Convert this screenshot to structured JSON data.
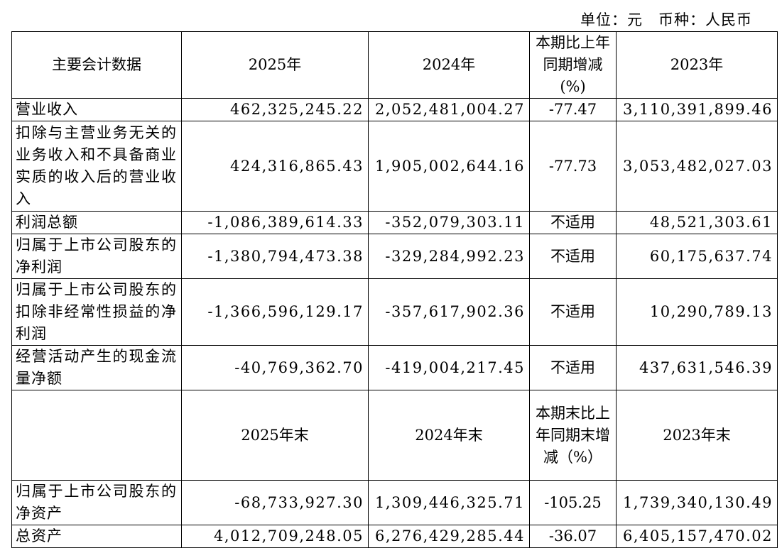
{
  "unit_line": "单位：元　币种：人民币",
  "table": {
    "rows": [
      [
        "主要会计数据",
        "2025年",
        "2024年",
        "本期比上年同期增减(%)",
        "2023年"
      ],
      [
        "营业收入",
        "462,325,245.22",
        "2,052,481,004.27",
        "-77.47",
        "3,110,391,899.46"
      ],
      [
        "扣除与主营业务无关的业务收入和不具备商业实质的收入后的营业收入",
        "424,316,865.43",
        "1,905,002,644.16",
        "-77.73",
        "3,053,482,027.03"
      ],
      [
        "利润总额",
        "-1,086,389,614.33",
        "-352,079,303.11",
        "不适用",
        "48,521,303.61"
      ],
      [
        "归属于上市公司股东的净利润",
        "-1,380,794,473.38",
        "-329,284,992.23",
        "不适用",
        "60,175,637.74"
      ],
      [
        "归属于上市公司股东的扣除非经常性损益的净利润",
        "-1,366,596,129.17",
        "-357,617,902.36",
        "不适用",
        "10,290,789.13"
      ],
      [
        "经营活动产生的现金流量净额",
        "-40,769,362.70",
        "-419,004,217.45",
        "不适用",
        "437,631,546.39"
      ],
      [
        null,
        "2025年末",
        "2024年末",
        "本期末比上年同期末增减（%）",
        "2023年末"
      ],
      [
        "归属于上市公司股东的净资产",
        "-68,733,927.30",
        "1,309,446,325.71",
        "-105.25",
        "1,739,340,130.49"
      ],
      [
        "总资产",
        "4,012,709,248.05",
        "6,276,429,285.44",
        "-36.07",
        "6,405,157,470.02"
      ]
    ]
  }
}
